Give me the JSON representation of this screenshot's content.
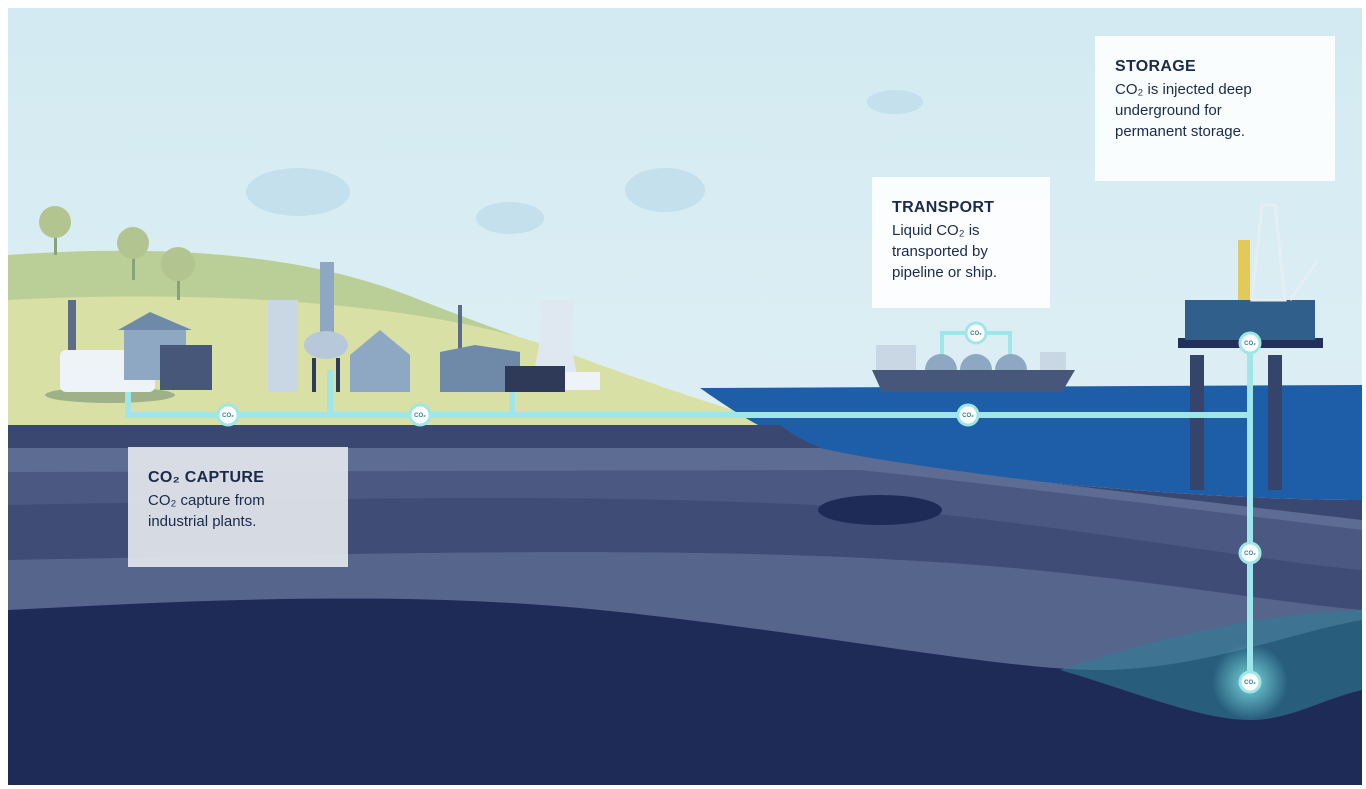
{
  "panels": [
    {
      "title": "CO₂ CAPTURE",
      "lines": [
        "CO₂ capture from",
        "industrial plants."
      ]
    },
    {
      "title": "TRANSPORT",
      "lines": [
        "Liquid CO₂ is",
        "transported by",
        "pipeline or ship."
      ]
    },
    {
      "title": "STORAGE",
      "lines": [
        "CO₂ is injected deep",
        "underground for",
        "permanent storage."
      ]
    }
  ],
  "pipeline": {
    "badge": "CO₂"
  }
}
